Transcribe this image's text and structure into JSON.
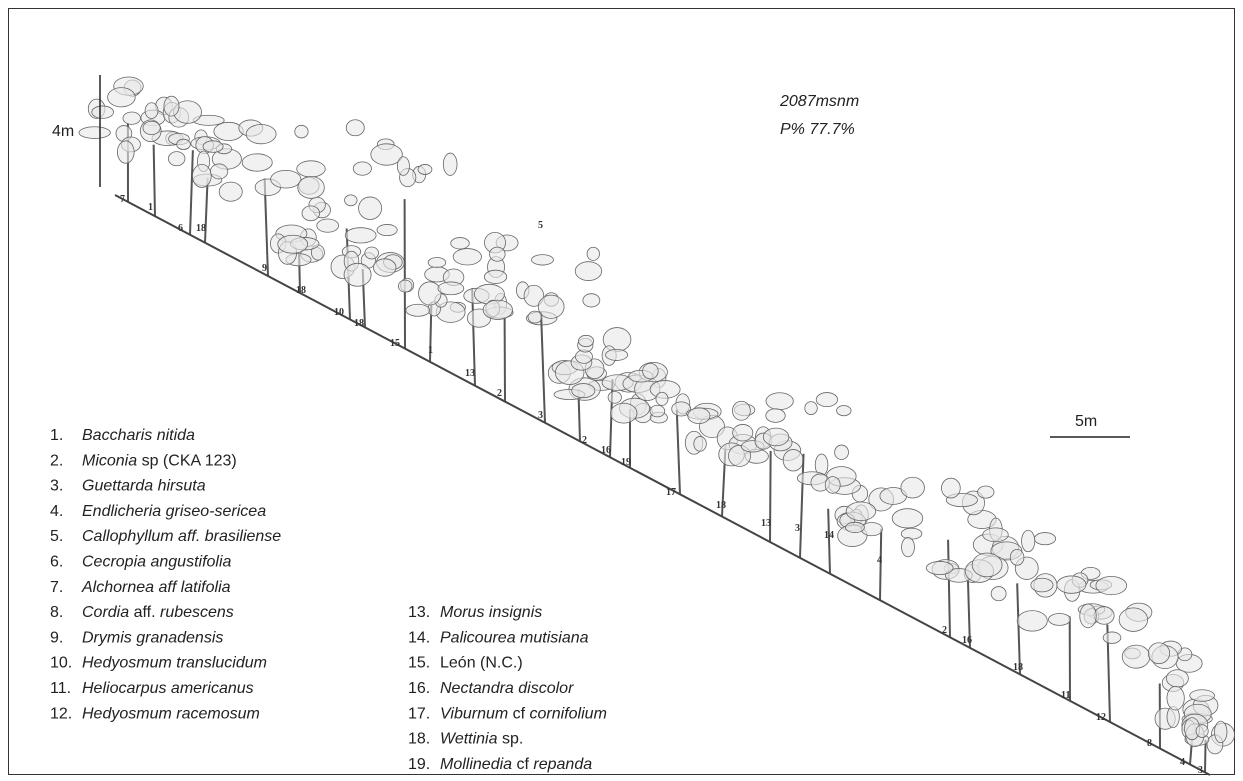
{
  "scale": {
    "vertical": "4m",
    "horizontal": "5m"
  },
  "site": {
    "elevation": "2087msnm",
    "percent": "P% 77.7%"
  },
  "tree_labels": [
    "7",
    "1",
    "6",
    "18",
    "9",
    "18",
    "10",
    "18",
    "15",
    "1",
    "13",
    "2",
    "3",
    "5",
    "2",
    "16",
    "19",
    "17",
    "18",
    "13",
    "3",
    "14",
    "4",
    "2",
    "16",
    "18",
    "11",
    "12",
    "8",
    "4",
    "3"
  ],
  "legend": [
    {
      "number": "1.",
      "name": [
        {
          "text": "Baccharis nitida",
          "italic": true
        }
      ]
    },
    {
      "number": "2.",
      "name": [
        {
          "text": "Miconia",
          "italic": true
        },
        {
          "text": " sp (CKA 123)"
        }
      ]
    },
    {
      "number": "3.",
      "name": [
        {
          "text": "Guettarda hirsuta",
          "italic": true
        }
      ]
    },
    {
      "number": "4.",
      "name": [
        {
          "text": "Endlicheria griseo-sericea",
          "italic": true
        }
      ]
    },
    {
      "number": "5.",
      "name": [
        {
          "text": "Callophyllum aff. brasiliense",
          "italic": true
        }
      ]
    },
    {
      "number": "6.",
      "name": [
        {
          "text": "Cecropia angustifolia",
          "italic": true
        }
      ]
    },
    {
      "number": "7.",
      "name": [
        {
          "text": "Alchornea aff latifolia",
          "italic": true
        }
      ]
    },
    {
      "number": "8.",
      "name": [
        {
          "text": "Cordia",
          "italic": true
        },
        {
          "text": " aff. "
        },
        {
          "text": "rubescens",
          "italic": true
        }
      ]
    },
    {
      "number": "9.",
      "name": [
        {
          "text": "Drymis granadensis",
          "italic": true
        }
      ]
    },
    {
      "number": "10.",
      "name": [
        {
          "text": "Hedyosmum translucidum",
          "italic": true
        }
      ]
    },
    {
      "number": "11.",
      "name": [
        {
          "text": "Heliocarpus americanus",
          "italic": true
        }
      ]
    },
    {
      "number": "12.",
      "name": [
        {
          "text": "Hedyosmum racemosum",
          "italic": true
        }
      ]
    },
    {
      "number": "13.",
      "name": [
        {
          "text": "Morus insignis",
          "italic": true
        }
      ]
    },
    {
      "number": "14.",
      "name": [
        {
          "text": "Palicourea mutisiana",
          "italic": true
        }
      ]
    },
    {
      "number": "15.",
      "name": [
        {
          "text": "León (N.C.)"
        }
      ]
    },
    {
      "number": "16.",
      "name": [
        {
          "text": "Nectandra discolor",
          "italic": true
        }
      ]
    },
    {
      "number": "17.",
      "name": [
        {
          "text": "Viburnum",
          "italic": true
        },
        {
          "text": " cf "
        },
        {
          "text": "cornifolium",
          "italic": true
        }
      ]
    },
    {
      "number": "18.",
      "name": [
        {
          "text": "Wettinia",
          "italic": true
        },
        {
          "text": " sp."
        }
      ]
    },
    {
      "number": "19.",
      "name": [
        {
          "text": "Mollinedia",
          "italic": true
        },
        {
          "text": " cf "
        },
        {
          "text": "repanda",
          "italic": true
        }
      ]
    }
  ]
}
